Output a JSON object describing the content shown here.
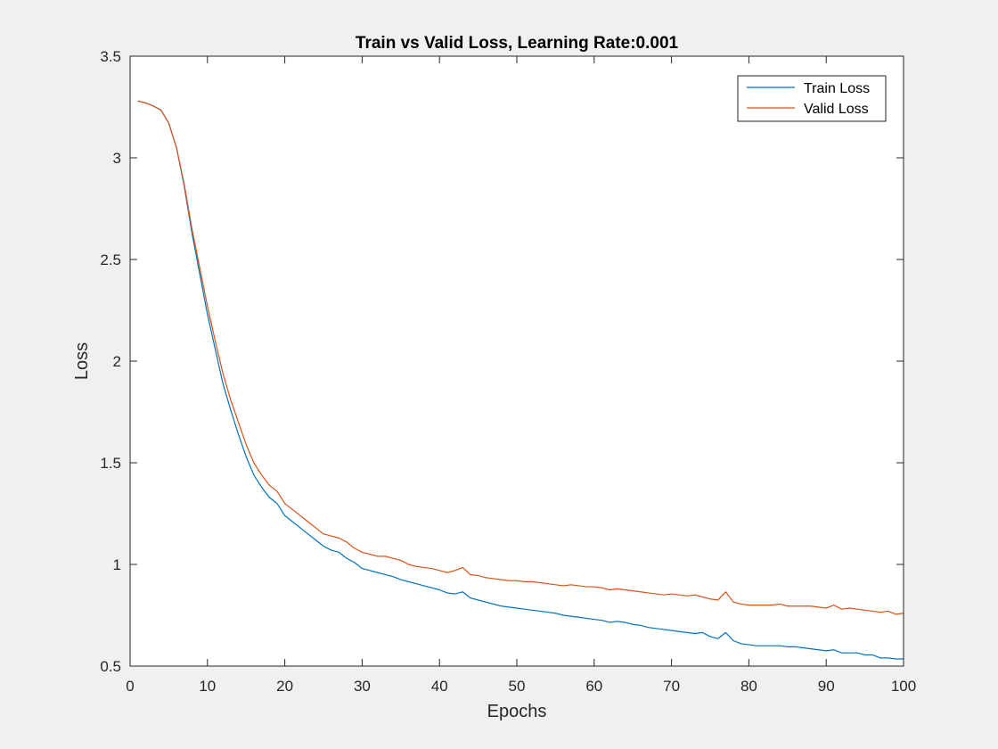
{
  "chart_data": {
    "type": "line",
    "title": "Train vs Valid Loss, Learning Rate:0.001",
    "xlabel": "Epochs",
    "ylabel": "Loss",
    "xlim": [
      0,
      100
    ],
    "ylim": [
      0.5,
      3.5
    ],
    "x_ticks": [
      0,
      10,
      20,
      30,
      40,
      50,
      60,
      70,
      80,
      90,
      100
    ],
    "y_ticks": [
      0.5,
      1,
      1.5,
      2,
      2.5,
      3,
      3.5
    ],
    "grid": false,
    "legend_position": "top-right",
    "series": [
      {
        "name": "Train Loss",
        "color": "#0072BD",
        "x": [
          1,
          2,
          3,
          4,
          5,
          6,
          7,
          8,
          9,
          10,
          11,
          12,
          13,
          14,
          15,
          16,
          17,
          18,
          19,
          20,
          21,
          22,
          23,
          24,
          25,
          26,
          27,
          28,
          29,
          30,
          31,
          32,
          33,
          34,
          35,
          36,
          37,
          38,
          39,
          40,
          41,
          42,
          43,
          44,
          45,
          46,
          47,
          48,
          49,
          50,
          51,
          52,
          53,
          54,
          55,
          56,
          57,
          58,
          59,
          60,
          61,
          62,
          63,
          64,
          65,
          66,
          67,
          68,
          69,
          70,
          71,
          72,
          73,
          74,
          75,
          76,
          77,
          78,
          79,
          80,
          81,
          82,
          83,
          84,
          85,
          86,
          87,
          88,
          89,
          90,
          91,
          92,
          93,
          94,
          95,
          96,
          97,
          98,
          99,
          100
        ],
        "y": [
          3.28,
          3.27,
          3.255,
          3.235,
          3.17,
          3.05,
          2.86,
          2.63,
          2.43,
          2.23,
          2.06,
          1.89,
          1.76,
          1.64,
          1.53,
          1.44,
          1.38,
          1.33,
          1.3,
          1.24,
          1.21,
          1.18,
          1.15,
          1.12,
          1.09,
          1.07,
          1.06,
          1.03,
          1.01,
          0.98,
          0.97,
          0.96,
          0.95,
          0.94,
          0.925,
          0.915,
          0.905,
          0.895,
          0.885,
          0.875,
          0.86,
          0.855,
          0.865,
          0.835,
          0.825,
          0.815,
          0.805,
          0.795,
          0.79,
          0.785,
          0.78,
          0.775,
          0.77,
          0.765,
          0.76,
          0.75,
          0.745,
          0.74,
          0.735,
          0.73,
          0.725,
          0.715,
          0.72,
          0.715,
          0.705,
          0.7,
          0.69,
          0.685,
          0.68,
          0.675,
          0.67,
          0.665,
          0.66,
          0.665,
          0.645,
          0.635,
          0.665,
          0.625,
          0.61,
          0.605,
          0.6,
          0.6,
          0.6,
          0.6,
          0.595,
          0.595,
          0.59,
          0.585,
          0.58,
          0.575,
          0.58,
          0.565,
          0.565,
          0.565,
          0.555,
          0.555,
          0.54,
          0.54,
          0.535,
          0.535
        ]
      },
      {
        "name": "Valid Loss",
        "color": "#D95319",
        "x": [
          1,
          2,
          3,
          4,
          5,
          6,
          7,
          8,
          9,
          10,
          11,
          12,
          13,
          14,
          15,
          16,
          17,
          18,
          19,
          20,
          21,
          22,
          23,
          24,
          25,
          26,
          27,
          28,
          29,
          30,
          31,
          32,
          33,
          34,
          35,
          36,
          37,
          38,
          39,
          40,
          41,
          42,
          43,
          44,
          45,
          46,
          47,
          48,
          49,
          50,
          51,
          52,
          53,
          54,
          55,
          56,
          57,
          58,
          59,
          60,
          61,
          62,
          63,
          64,
          65,
          66,
          67,
          68,
          69,
          70,
          71,
          72,
          73,
          74,
          75,
          76,
          77,
          78,
          79,
          80,
          81,
          82,
          83,
          84,
          85,
          86,
          87,
          88,
          89,
          90,
          91,
          92,
          93,
          94,
          95,
          96,
          97,
          98,
          99,
          100
        ],
        "y": [
          3.28,
          3.27,
          3.255,
          3.235,
          3.17,
          3.05,
          2.87,
          2.65,
          2.46,
          2.27,
          2.1,
          1.94,
          1.81,
          1.7,
          1.59,
          1.5,
          1.44,
          1.39,
          1.36,
          1.3,
          1.27,
          1.24,
          1.21,
          1.18,
          1.15,
          1.14,
          1.13,
          1.11,
          1.08,
          1.06,
          1.05,
          1.04,
          1.04,
          1.03,
          1.02,
          1.0,
          0.99,
          0.985,
          0.98,
          0.97,
          0.96,
          0.97,
          0.985,
          0.95,
          0.945,
          0.935,
          0.93,
          0.925,
          0.92,
          0.92,
          0.915,
          0.915,
          0.91,
          0.905,
          0.9,
          0.895,
          0.9,
          0.895,
          0.89,
          0.89,
          0.885,
          0.875,
          0.88,
          0.875,
          0.87,
          0.865,
          0.86,
          0.855,
          0.85,
          0.855,
          0.85,
          0.845,
          0.85,
          0.84,
          0.83,
          0.825,
          0.865,
          0.815,
          0.805,
          0.8,
          0.8,
          0.8,
          0.8,
          0.805,
          0.795,
          0.795,
          0.795,
          0.795,
          0.79,
          0.785,
          0.8,
          0.78,
          0.785,
          0.78,
          0.775,
          0.77,
          0.765,
          0.77,
          0.755,
          0.76
        ]
      }
    ]
  }
}
